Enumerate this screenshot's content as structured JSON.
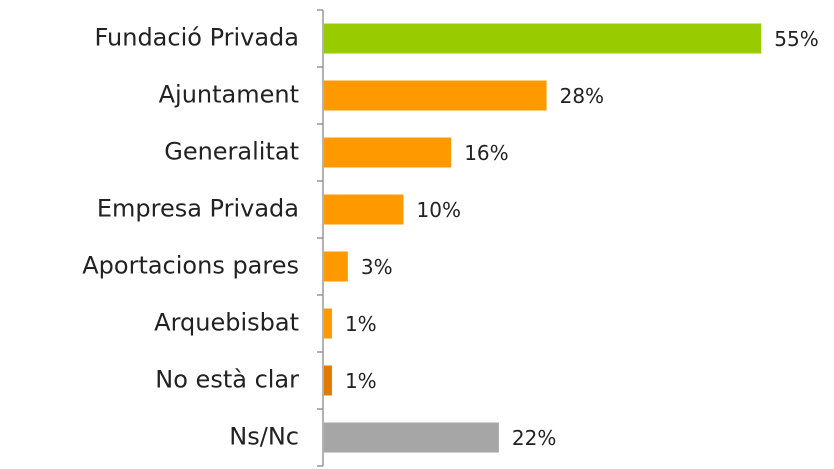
{
  "chart_data": {
    "type": "bar",
    "orientation": "horizontal",
    "categories": [
      "Fundació Privada",
      "Ajuntament",
      "Generalitat",
      "Empresa Privada",
      "Aportacions pares",
      "Arquebisbat",
      "No està clar",
      "Ns/Nc"
    ],
    "values": [
      55,
      28,
      16,
      10,
      3,
      1,
      1,
      22
    ],
    "value_labels": [
      "55%",
      "28%",
      "16%",
      "10%",
      "3%",
      "1%",
      "1%",
      "22%"
    ],
    "colors": [
      "#99cc00",
      "#ff9900",
      "#ff9900",
      "#ff9900",
      "#ff9900",
      "#ff9900",
      "#e07b00",
      "#a6a6a6"
    ]
  }
}
